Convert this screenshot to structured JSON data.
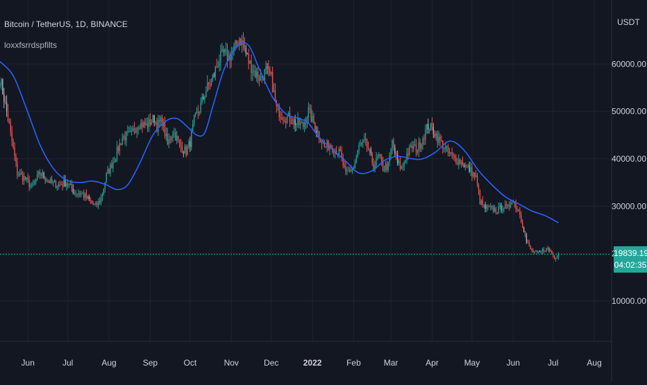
{
  "header": {
    "title": "Bitcoin / TetherUS, 1D, BINANCE",
    "indicator": "loxxfsrrdspfilts"
  },
  "price_scale": {
    "currency": "USDT",
    "last_price": "19839.19",
    "countdown": "04:02:35"
  },
  "colors": {
    "background": "#131722",
    "up": "#26a69a",
    "down": "#ef5350",
    "neutral": "#b2b5be",
    "ma_line": "#2962ff",
    "grid": "#1f2330",
    "price_line": "#26a69a"
  },
  "chart_data": {
    "type": "candlestick",
    "title": "Bitcoin / TetherUS, 1D, BINANCE",
    "y_ticks": [
      10000,
      20000,
      30000,
      40000,
      50000,
      60000
    ],
    "y_tick_labels": [
      "10000.00",
      "20000.00",
      "30000.00",
      "40000.00",
      "50000.00",
      "60000.00"
    ],
    "ylim": [
      1500,
      73500
    ],
    "x_ticks": [
      {
        "label": "Jun",
        "day": 11
      },
      {
        "label": "Jul",
        "day": 41
      },
      {
        "label": "Aug",
        "day": 72
      },
      {
        "label": "Sep",
        "day": 103
      },
      {
        "label": "Oct",
        "day": 133
      },
      {
        "label": "Nov",
        "day": 164
      },
      {
        "label": "Dec",
        "day": 194
      },
      {
        "label": "2022",
        "day": 225,
        "bold": true
      },
      {
        "label": "Feb",
        "day": 256
      },
      {
        "label": "Mar",
        "day": 284
      },
      {
        "label": "Apr",
        "day": 315
      },
      {
        "label": "May",
        "day": 345
      },
      {
        "label": "Jun",
        "day": 376
      },
      {
        "label": "Jul",
        "day": 406
      },
      {
        "label": "Aug",
        "day": 437
      }
    ],
    "xlim": [
      -10,
      450
    ],
    "price_anchors": [
      [
        -10,
        57000
      ],
      [
        -5,
        50000
      ],
      [
        0,
        42000
      ],
      [
        3,
        37000
      ],
      [
        8,
        36000
      ],
      [
        14,
        34000
      ],
      [
        20,
        37000
      ],
      [
        28,
        35000
      ],
      [
        34,
        34500
      ],
      [
        40,
        35000
      ],
      [
        46,
        33000
      ],
      [
        52,
        32500
      ],
      [
        58,
        31000
      ],
      [
        62,
        30000
      ],
      [
        66,
        31500
      ],
      [
        70,
        36500
      ],
      [
        76,
        40000
      ],
      [
        82,
        44500
      ],
      [
        88,
        45000
      ],
      [
        94,
        47500
      ],
      [
        100,
        47000
      ],
      [
        106,
        48500
      ],
      [
        108,
        47000
      ],
      [
        112,
        48000
      ],
      [
        116,
        43000
      ],
      [
        120,
        46000
      ],
      [
        126,
        42500
      ],
      [
        130,
        41500
      ],
      [
        133,
        43500
      ],
      [
        136,
        48000
      ],
      [
        140,
        50500
      ],
      [
        145,
        54500
      ],
      [
        150,
        57000
      ],
      [
        154,
        60500
      ],
      [
        158,
        62000
      ],
      [
        162,
        61500
      ],
      [
        166,
        63000
      ],
      [
        170,
        65500
      ],
      [
        173,
        64000
      ],
      [
        177,
        60500
      ],
      [
        182,
        58000
      ],
      [
        186,
        57000
      ],
      [
        190,
        58500
      ],
      [
        194,
        57000
      ],
      [
        198,
        50500
      ],
      [
        203,
        49000
      ],
      [
        208,
        48500
      ],
      [
        213,
        47500
      ],
      [
        218,
        47000
      ],
      [
        222,
        50000
      ],
      [
        226,
        47500
      ],
      [
        230,
        45000
      ],
      [
        234,
        42500
      ],
      [
        238,
        43000
      ],
      [
        242,
        42000
      ],
      [
        246,
        41000
      ],
      [
        250,
        36500
      ],
      [
        253,
        37500
      ],
      [
        256,
        38000
      ],
      [
        260,
        42500
      ],
      [
        264,
        43500
      ],
      [
        267,
        42000
      ],
      [
        271,
        38500
      ],
      [
        275,
        40500
      ],
      [
        278,
        38000
      ],
      [
        282,
        38500
      ],
      [
        285,
        43500
      ],
      [
        289,
        39000
      ],
      [
        292,
        38000
      ],
      [
        296,
        41000
      ],
      [
        300,
        42500
      ],
      [
        304,
        42000
      ],
      [
        308,
        44500
      ],
      [
        312,
        47000
      ],
      [
        316,
        46000
      ],
      [
        320,
        44000
      ],
      [
        324,
        42500
      ],
      [
        328,
        41000
      ],
      [
        332,
        40000
      ],
      [
        336,
        39500
      ],
      [
        340,
        38500
      ],
      [
        344,
        37500
      ],
      [
        348,
        36000
      ],
      [
        351,
        31000
      ],
      [
        355,
        29500
      ],
      [
        360,
        29500
      ],
      [
        364,
        29000
      ],
      [
        368,
        30000
      ],
      [
        372,
        29500
      ],
      [
        375,
        31500
      ],
      [
        378,
        30000
      ],
      [
        381,
        28500
      ],
      [
        384,
        25000
      ],
      [
        386,
        22500
      ],
      [
        390,
        20500
      ],
      [
        395,
        20000
      ],
      [
        400,
        21000
      ],
      [
        404,
        20500
      ],
      [
        407,
        19200
      ],
      [
        410,
        19839
      ]
    ],
    "ma_points": [
      [
        -10,
        60500
      ],
      [
        0,
        57500
      ],
      [
        10,
        50500
      ],
      [
        20,
        43000
      ],
      [
        30,
        38000
      ],
      [
        40,
        35500
      ],
      [
        50,
        35000
      ],
      [
        60,
        35300
      ],
      [
        70,
        34500
      ],
      [
        78,
        33500
      ],
      [
        86,
        34500
      ],
      [
        95,
        39000
      ],
      [
        105,
        45000
      ],
      [
        115,
        48000
      ],
      [
        123,
        48500
      ],
      [
        130,
        47000
      ],
      [
        138,
        45000
      ],
      [
        144,
        45500
      ],
      [
        150,
        51000
      ],
      [
        158,
        58500
      ],
      [
        166,
        63000
      ],
      [
        172,
        64500
      ],
      [
        178,
        63500
      ],
      [
        185,
        59000
      ],
      [
        195,
        53000
      ],
      [
        205,
        49500
      ],
      [
        215,
        48500
      ],
      [
        222,
        47500
      ],
      [
        230,
        44500
      ],
      [
        240,
        42000
      ],
      [
        250,
        39500
      ],
      [
        260,
        37000
      ],
      [
        270,
        37500
      ],
      [
        280,
        39800
      ],
      [
        290,
        40500
      ],
      [
        300,
        40000
      ],
      [
        308,
        40000
      ],
      [
        318,
        41500
      ],
      [
        326,
        43500
      ],
      [
        332,
        43500
      ],
      [
        340,
        41500
      ],
      [
        350,
        37500
      ],
      [
        360,
        34500
      ],
      [
        370,
        32000
      ],
      [
        380,
        30500
      ],
      [
        390,
        29000
      ],
      [
        400,
        28000
      ],
      [
        410,
        26500
      ]
    ]
  }
}
